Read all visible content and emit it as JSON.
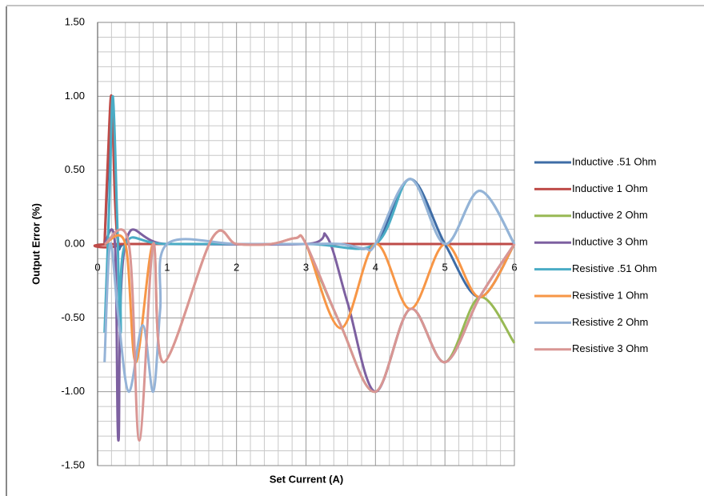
{
  "chart_data": {
    "type": "line",
    "x_label": "Set Current (A)",
    "y_label": "Output Error (%)",
    "xlim": [
      0,
      6
    ],
    "xticks": [
      0,
      1,
      2,
      3,
      4,
      5,
      6
    ],
    "ylim": [
      -1.5,
      1.5
    ],
    "yticks": [
      {
        "value": -1.5,
        "label": "-1.50"
      },
      {
        "value": -1.0,
        "label": "-1.00"
      },
      {
        "value": -0.5,
        "label": "-0.50"
      },
      {
        "value": 0,
        "label": "0.00"
      },
      {
        "value": 0.5,
        "label": "0.50"
      },
      {
        "value": 1.0,
        "label": "1.00"
      },
      {
        "value": 1.5,
        "label": "1.50"
      }
    ],
    "grid": true,
    "legend": "right",
    "series": [
      {
        "name": "Inductive .51 Ohm",
        "color": "#3e6ca6",
        "x": [
          0.1,
          0.15,
          0.2,
          0.25,
          0.3,
          0.4,
          1,
          2,
          3,
          3.5,
          4,
          4.5,
          5,
          5.5,
          6
        ],
        "values": [
          0,
          0.5,
          1.0,
          0.5,
          0,
          0,
          0,
          0,
          0,
          0,
          0,
          0.44,
          0,
          -0.36,
          0
        ]
      },
      {
        "name": "Inductive 1 Ohm",
        "color": "#be4b48",
        "x": [
          0.1,
          0.15,
          0.2,
          0.25,
          0.3,
          0.4,
          6
        ],
        "values": [
          0,
          0.6,
          1.0,
          0.3,
          0,
          0,
          0
        ]
      },
      {
        "name": "Inductive 2 Ohm",
        "color": "#98b954",
        "x": [
          3,
          3.5,
          4,
          4.5,
          5,
          5.5,
          6
        ],
        "values": [
          0,
          -0.55,
          -1.0,
          -0.44,
          -0.8,
          -0.36,
          -0.67
        ]
      },
      {
        "name": "Inductive 3 Ohm",
        "color": "#7d60a0",
        "x": [
          0.1,
          0.25,
          0.3,
          0.4,
          1,
          3,
          3.3,
          3.6,
          4,
          4.5,
          5,
          5.5,
          6
        ],
        "values": [
          0,
          0,
          -1.33,
          0,
          0,
          0,
          0.05,
          -0.4,
          -1.0,
          -0.44,
          -0.8,
          -0.36,
          0
        ]
      },
      {
        "name": "Resistive .51 Ohm",
        "color": "#4aacc5",
        "x": [
          0.1,
          0.17,
          0.22,
          0.28,
          0.33,
          0.4,
          1,
          3,
          4,
          4.5,
          5,
          5.5,
          6
        ],
        "values": [
          -0.6,
          0.3,
          1.0,
          0.2,
          -0.6,
          0,
          0,
          0,
          0,
          0.44,
          0,
          0.36,
          0
        ]
      },
      {
        "name": "Resistive 1 Ohm",
        "color": "#f79646",
        "x": [
          0.1,
          0.4,
          0.55,
          0.8,
          0.95,
          1.65,
          2,
          2.5,
          2.85,
          3,
          3.5,
          4,
          4.5,
          5,
          5.5,
          6
        ],
        "values": [
          0,
          0,
          -0.8,
          0,
          -0.8,
          0.04,
          0,
          0,
          0.04,
          0,
          -0.57,
          0,
          -0.44,
          0,
          -0.36,
          0
        ]
      },
      {
        "name": "Resistive 2 Ohm",
        "color": "#95b3d7",
        "x": [
          0.1,
          0.18,
          0.3,
          0.45,
          0.65,
          0.8,
          0.9,
          1,
          2,
          3,
          3.5,
          3.85,
          4,
          4.5,
          5,
          5.5,
          6
        ],
        "values": [
          -0.8,
          0,
          -0.5,
          -1.0,
          -0.55,
          -1.0,
          -0.45,
          0,
          0,
          0,
          0,
          -0.03,
          0,
          0.44,
          0,
          0.36,
          0
        ]
      },
      {
        "name": "Resistive 3 Ohm",
        "color": "#d99694",
        "x": [
          0.1,
          0.45,
          0.6,
          0.8,
          0.95,
          1.65,
          2,
          2.5,
          2.85,
          3,
          3.5,
          4,
          4.5,
          5,
          5.5,
          6
        ],
        "values": [
          0,
          0,
          -1.33,
          0,
          -0.8,
          0.04,
          0,
          0,
          0.04,
          0,
          -0.55,
          -1.0,
          -0.44,
          -0.8,
          -0.36,
          0
        ]
      }
    ]
  }
}
